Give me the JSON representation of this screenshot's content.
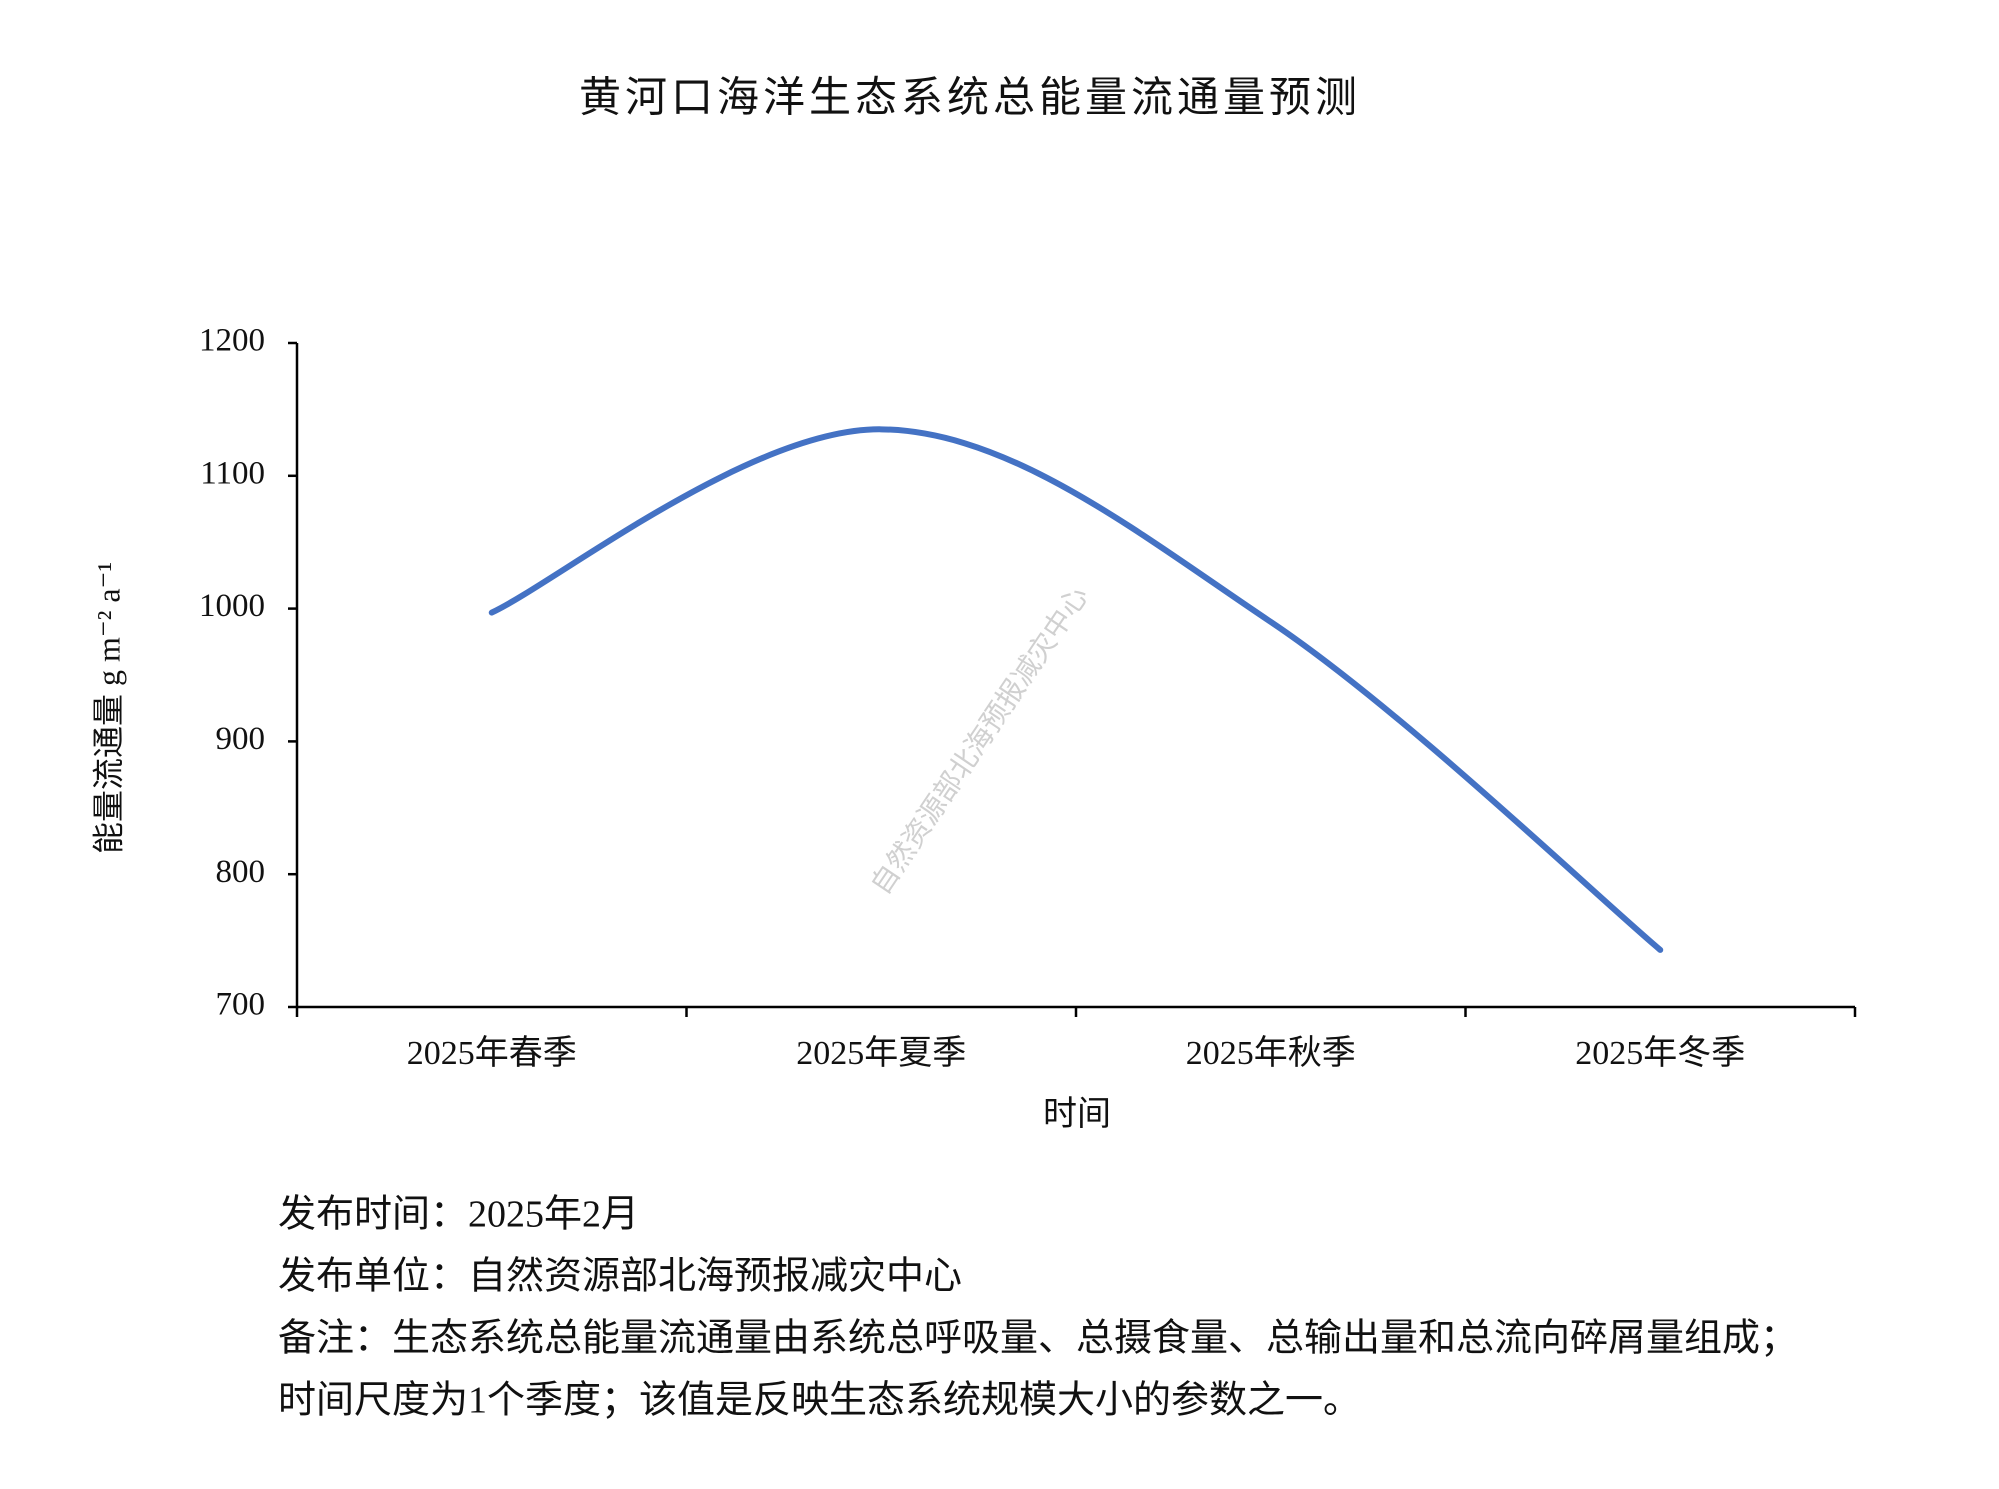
{
  "chart_data": {
    "type": "line",
    "title": "黄河口海洋生态系统总能量流通量预测",
    "x_label": "时间",
    "y_label": "能量流通量 g m⁻² a⁻¹",
    "categories": [
      "2025年春季",
      "2025年夏季",
      "2025年秋季",
      "2025年冬季"
    ],
    "values": [
      997,
      1135,
      990,
      743
    ],
    "color": "#4472c4",
    "smooth": true,
    "ylim": [
      700,
      1200
    ],
    "yticks": [
      700,
      800,
      900,
      1000,
      1100,
      1200
    ],
    "grid": false,
    "watermark": "自然资源部北海预报减灾中心"
  },
  "notes": [
    "发布时间：2025年2月",
    "发布单位：自然资源部北海预报减灾中心",
    "备注：生态系统总能量流通量由系统总呼吸量、总摄食量、总输出量和总流向碎屑量组成；",
    "时间尺度为1个季度；该值是反映生态系统规模大小的参数之一。"
  ]
}
